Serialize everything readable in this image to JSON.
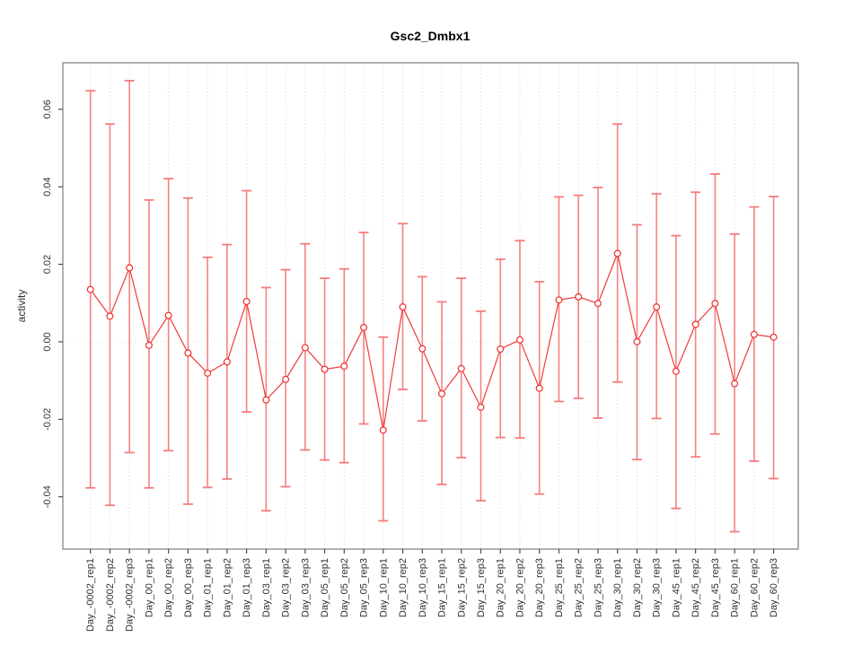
{
  "figure": {
    "background": "#ffffff"
  },
  "chart_data": {
    "type": "line",
    "title": "Gsc2_Dmbx1",
    "ylabel": "activity",
    "xlabel": "",
    "ylim": [
      -0.0535,
      0.072
    ],
    "ytick_labels": [
      "-0.04",
      "-0.02",
      "0.00",
      "0.02",
      "0.04",
      "0.06"
    ],
    "yticks": [
      -0.04,
      -0.02,
      0.0,
      0.02,
      0.04,
      0.06
    ],
    "grid": {
      "vertical_dotted_per_category": true,
      "horizontal_dotted_at_zero": true
    },
    "legend": "none",
    "marker": "open-circle",
    "error_bars": true,
    "categories": [
      "Day_-0002_rep1",
      "Day_-0002_rep2",
      "Day_-0002_rep3",
      "Day_00_rep1",
      "Day_00_rep2",
      "Day_00_rep3",
      "Day_01_rep1",
      "Day_01_rep2",
      "Day_01_rep3",
      "Day_03_rep1",
      "Day_03_rep2",
      "Day_03_rep3",
      "Day_05_rep1",
      "Day_05_rep2",
      "Day_05_rep3",
      "Day_10_rep1",
      "Day_10_rep2",
      "Day_10_rep3",
      "Day_15_rep1",
      "Day_15_rep2",
      "Day_15_rep3",
      "Day_20_rep1",
      "Day_20_rep2",
      "Day_20_rep3",
      "Day_25_rep1",
      "Day_25_rep2",
      "Day_25_rep3",
      "Day_30_rep1",
      "Day_30_rep2",
      "Day_30_rep3",
      "Day_45_rep1",
      "Day_45_rep2",
      "Day_45_rep3",
      "Day_60_rep1",
      "Day_60_rep2",
      "Day_60_rep3"
    ],
    "series": [
      {
        "name": "activity",
        "values": [
          0.0135,
          0.0066,
          0.0191,
          -0.0009,
          0.0068,
          -0.0029,
          -0.0081,
          -0.0052,
          0.0104,
          -0.015,
          -0.0097,
          -0.0015,
          -0.0071,
          -0.0063,
          0.0037,
          -0.0228,
          0.009,
          -0.0018,
          -0.0134,
          -0.0069,
          -0.0169,
          -0.0019,
          0.0005,
          -0.012,
          0.0108,
          0.0116,
          0.0099,
          0.0228,
          0.0,
          0.009,
          -0.0076,
          0.0045,
          0.0099,
          -0.0108,
          0.0019,
          0.0012
        ],
        "err_low": [
          -0.0377,
          -0.0422,
          -0.0286,
          -0.0377,
          -0.0281,
          -0.0419,
          -0.0376,
          -0.0354,
          -0.0181,
          -0.0436,
          -0.0374,
          -0.0279,
          -0.0305,
          -0.0312,
          -0.0212,
          -0.0462,
          -0.0123,
          -0.0204,
          -0.0368,
          -0.0299,
          -0.041,
          -0.0247,
          -0.0248,
          -0.0393,
          -0.0154,
          -0.0146,
          -0.0197,
          -0.0104,
          -0.0304,
          -0.0198,
          -0.043,
          -0.0297,
          -0.0238,
          -0.049,
          -0.0308,
          -0.0353
        ],
        "err_high": [
          0.0648,
          0.0562,
          0.0674,
          0.0366,
          0.0421,
          0.0371,
          0.0218,
          0.0251,
          0.039,
          0.014,
          0.0186,
          0.0253,
          0.0164,
          0.0188,
          0.0282,
          0.0012,
          0.0305,
          0.0168,
          0.0103,
          0.0164,
          0.0079,
          0.0213,
          0.0261,
          0.0155,
          0.0374,
          0.0378,
          0.0398,
          0.0562,
          0.0302,
          0.0382,
          0.0274,
          0.0386,
          0.0433,
          0.0278,
          0.0348,
          0.0375
        ]
      }
    ],
    "colors": {
      "line": "#ef3b3b",
      "point_stroke": "#ef3b3b",
      "point_fill": "#ffffff",
      "error_bar": "#f57575",
      "grid": "#d8d8d8",
      "zero_line": "#e2e2e2",
      "axis_box": "#7d7d7d",
      "tick": "#4d4d4d",
      "text": "#303030"
    }
  }
}
